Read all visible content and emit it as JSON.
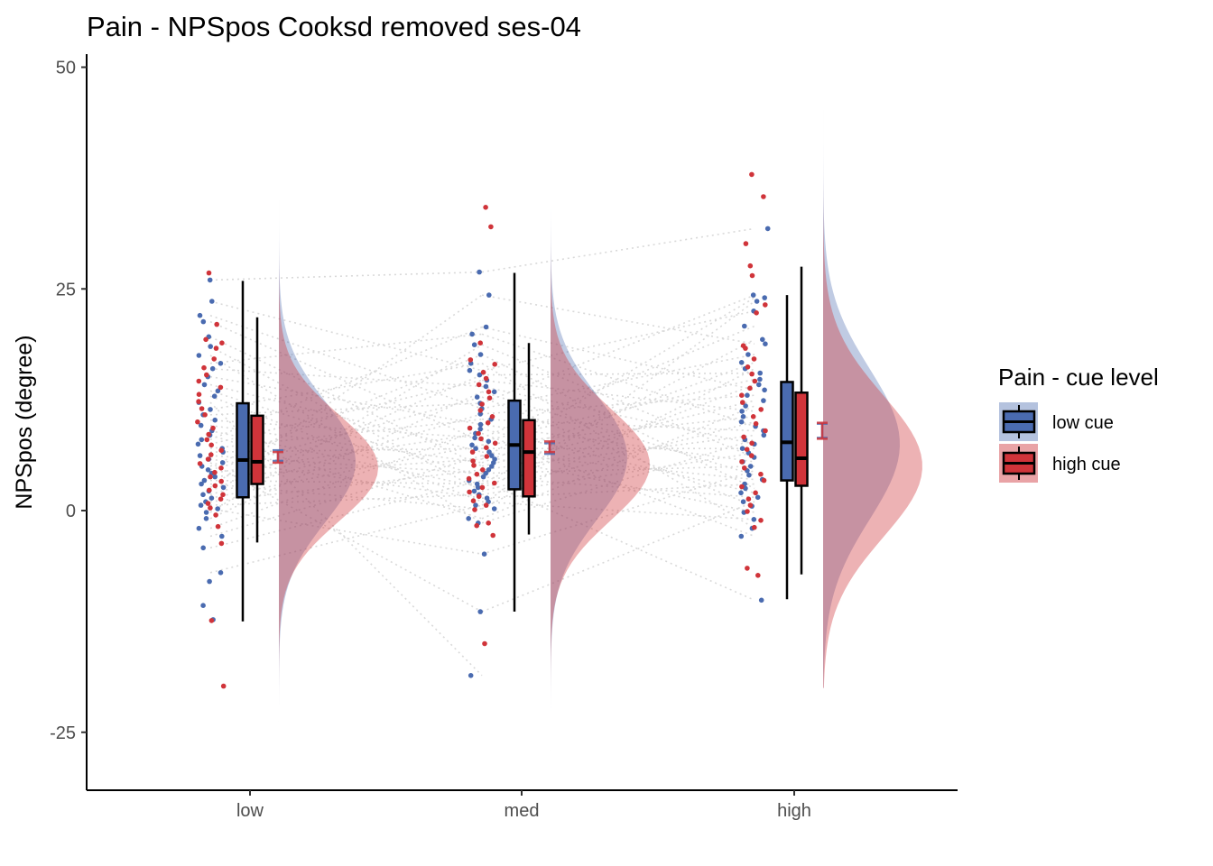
{
  "chart_data": {
    "type": "raincloud",
    "title": "Pain  - NPSpos Cooksd removed  ses-04",
    "xlabel": "",
    "ylabel": "NPSpos (degree)",
    "categories": [
      "low",
      "med",
      "high"
    ],
    "ylim": [
      -31,
      52
    ],
    "yticks": [
      -25,
      0,
      25,
      50
    ],
    "legend": {
      "title": "Pain  - cue level",
      "position": "right",
      "entries": [
        "low cue",
        "high cue"
      ]
    },
    "colors": {
      "low_cue": "#4A6BB0",
      "high_cue": "#D0343A",
      "low_cue_cloud": "#B4C2DE",
      "high_cue_cloud": "#E9A3A6",
      "connector": "#d9d9d9"
    },
    "grid": false,
    "series": [
      {
        "name": "low cue",
        "boxplot": [
          {
            "category": "low",
            "whisker_low": -12.5,
            "q1": 1.5,
            "median": 5.7,
            "q3": 12.1,
            "whisker_high": 25.9
          },
          {
            "category": "med",
            "whisker_low": -11.4,
            "q1": 2.4,
            "median": 7.4,
            "q3": 12.4,
            "whisker_high": 26.8
          },
          {
            "category": "high",
            "whisker_low": -10.0,
            "q1": 3.4,
            "median": 7.7,
            "q3": 14.5,
            "whisker_high": 24.3
          }
        ],
        "mean_se": [
          {
            "category": "low",
            "mean": 6.2,
            "se_low": 5.6,
            "se_high": 6.8
          },
          {
            "category": "med",
            "mean": 7.0,
            "se_low": 6.4,
            "se_high": 7.6
          },
          {
            "category": "high",
            "mean": 9.0,
            "se_low": 8.2,
            "se_high": 9.8
          }
        ],
        "density": [
          {
            "category": "low",
            "mean": 5.5,
            "sd": 6.8,
            "from": -22,
            "to": 35
          },
          {
            "category": "med",
            "mean": 6.0,
            "sd": 7.0,
            "from": -28,
            "to": 41
          },
          {
            "category": "high",
            "mean": 7.5,
            "sd": 8.5,
            "from": -20,
            "to": 46
          }
        ],
        "points": [
          {
            "category": "low",
            "values": [
              26.0,
              23.6,
              22.0,
              21.3,
              19.6,
              18.5,
              17.5,
              16.6,
              16.0,
              15.1,
              14.2,
              13.5,
              12.9,
              12.2,
              11.4,
              10.8,
              10.2,
              9.6,
              9.0,
              8.5,
              8.0,
              7.5,
              7.0,
              6.6,
              6.2,
              5.8,
              5.4,
              5.0,
              4.6,
              4.2,
              3.8,
              3.4,
              3.0,
              2.6,
              2.2,
              1.8,
              1.4,
              1.0,
              0.6,
              0.2,
              -0.2,
              -0.9,
              -2.0,
              -2.9,
              -4.2,
              -7.0,
              -8.0,
              -10.7,
              -12.3
            ]
          },
          {
            "category": "med",
            "values": [
              26.9,
              24.3,
              20.7,
              19.9,
              18.7,
              17.6,
              16.6,
              15.8,
              15.3,
              14.7,
              14.0,
              13.4,
              12.8,
              12.1,
              11.5,
              10.9,
              10.3,
              9.7,
              9.2,
              8.7,
              8.2,
              7.8,
              7.4,
              7.0,
              6.6,
              6.2,
              5.8,
              5.4,
              5.0,
              4.6,
              4.2,
              3.8,
              3.4,
              3.0,
              2.6,
              2.2,
              1.8,
              1.4,
              1.0,
              0.6,
              0.2,
              -0.9,
              -1.4,
              -4.9,
              -11.4,
              -18.6
            ]
          },
          {
            "category": "high",
            "values": [
              31.8,
              24.3,
              24.0,
              23.6,
              22.5,
              20.8,
              19.3,
              18.8,
              17.6,
              16.7,
              16.0,
              15.5,
              14.8,
              14.2,
              13.6,
              13.0,
              12.4,
              11.8,
              11.2,
              10.6,
              10.0,
              9.5,
              9.0,
              8.5,
              8.0,
              7.5,
              7.0,
              6.5,
              6.0,
              5.5,
              5.0,
              4.5,
              4.0,
              3.5,
              3.0,
              2.5,
              2.0,
              1.5,
              1.0,
              0.5,
              -0.2,
              -1.0,
              -2.0,
              -2.9,
              -10.1
            ]
          }
        ]
      },
      {
        "name": "high cue",
        "boxplot": [
          {
            "category": "low",
            "whisker_low": -3.6,
            "q1": 3.0,
            "median": 5.5,
            "q3": 10.7,
            "whisker_high": 21.8
          },
          {
            "category": "med",
            "whisker_low": -2.7,
            "q1": 1.6,
            "median": 6.6,
            "q3": 10.2,
            "whisker_high": 18.9
          },
          {
            "category": "high",
            "whisker_low": -7.2,
            "q1": 2.8,
            "median": 5.9,
            "q3": 13.3,
            "whisker_high": 27.5
          }
        ],
        "mean_se": [
          {
            "category": "low",
            "mean": 6.0,
            "se_low": 5.4,
            "se_high": 6.6
          },
          {
            "category": "med",
            "mean": 7.2,
            "se_low": 6.6,
            "se_high": 7.8
          },
          {
            "category": "high",
            "mean": 9.0,
            "se_low": 8.1,
            "se_high": 9.9
          }
        ],
        "density": [
          {
            "category": "low",
            "mean": 4.8,
            "sd": 6.0,
            "from": -27,
            "to": 35
          },
          {
            "category": "med",
            "mean": 5.2,
            "sd": 6.3,
            "from": -24,
            "to": 42
          },
          {
            "category": "high",
            "mean": 5.0,
            "sd": 8.0,
            "from": -20,
            "to": 48
          }
        ],
        "points": [
          {
            "category": "low",
            "values": [
              26.8,
              21.0,
              19.3,
              18.9,
              18.3,
              17.1,
              16.1,
              15.3,
              14.6,
              13.9,
              13.1,
              12.3,
              11.5,
              10.8,
              10.0,
              9.3,
              8.6,
              8.0,
              7.4,
              6.8,
              6.3,
              5.8,
              5.3,
              4.8,
              4.3,
              3.8,
              3.3,
              2.8,
              2.3,
              1.8,
              1.3,
              0.8,
              0.3,
              -0.5,
              -1.8,
              -3.7,
              -12.4,
              -19.8
            ]
          },
          {
            "category": "med",
            "values": [
              34.2,
              32.0,
              18.9,
              17.0,
              16.5,
              15.6,
              14.9,
              14.2,
              13.4,
              12.7,
              12.0,
              11.3,
              10.6,
              9.9,
              9.3,
              8.7,
              8.1,
              7.6,
              7.1,
              6.6,
              6.1,
              5.6,
              5.1,
              4.6,
              4.1,
              3.6,
              3.1,
              2.6,
              2.1,
              1.6,
              1.1,
              0.6,
              0.1,
              -1.4,
              -1.7,
              -2.8,
              -15.0
            ]
          },
          {
            "category": "high",
            "values": [
              37.9,
              35.4,
              30.1,
              27.6,
              26.5,
              23.2,
              22.3,
              18.6,
              18.3,
              17.1,
              16.2,
              15.4,
              14.6,
              13.8,
              13.0,
              12.2,
              11.4,
              10.6,
              9.8,
              9.0,
              8.3,
              7.6,
              6.9,
              6.2,
              5.5,
              4.8,
              4.1,
              3.4,
              2.7,
              2.0,
              1.3,
              0.6,
              -0.1,
              -1.1,
              -1.9,
              -6.5,
              -7.3
            ]
          }
        ]
      }
    ]
  }
}
